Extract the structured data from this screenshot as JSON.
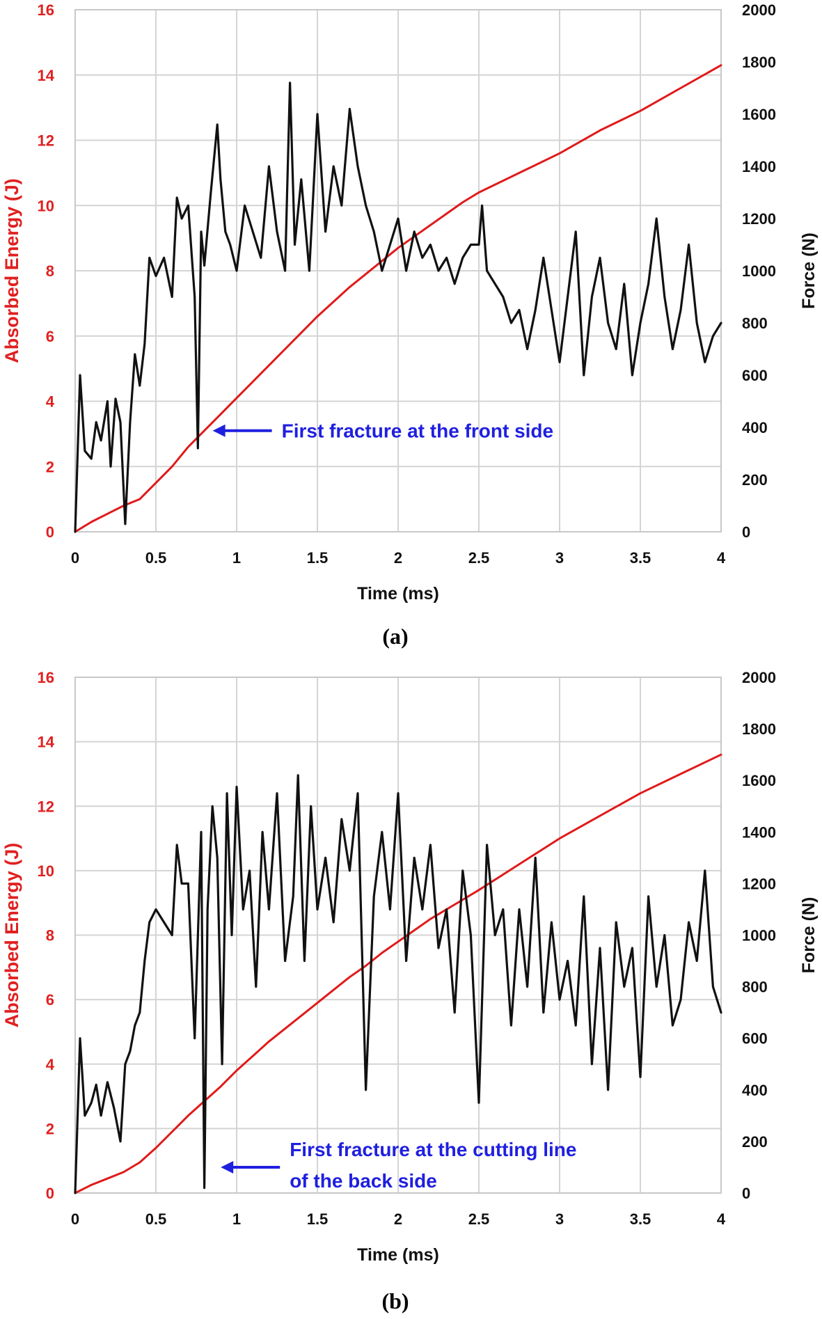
{
  "chart_data": [
    {
      "type": "line",
      "panel": "a",
      "caption": "(a)",
      "xlabel": "Time (ms)",
      "ylabel_left": "Absorbed Energy (J)",
      "ylabel_right": "Force (N)",
      "xlim": [
        0,
        4
      ],
      "ylim_left": [
        0,
        16
      ],
      "ylim_right": [
        0,
        2000
      ],
      "x_ticks": [
        "0",
        "0.5",
        "1",
        "1.5",
        "2",
        "2.5",
        "3",
        "3.5",
        "4"
      ],
      "y_left_ticks": [
        "0",
        "2",
        "4",
        "6",
        "8",
        "10",
        "12",
        "14",
        "16"
      ],
      "y_right_ticks": [
        "0",
        "200",
        "400",
        "600",
        "800",
        "1000",
        "1200",
        "1400",
        "1600",
        "1800",
        "2000"
      ],
      "grid": true,
      "annotation": {
        "lines": [
          "First fracture at the front side"
        ],
        "target_x": 0.8,
        "target_energy": 3.1
      },
      "series": [
        {
          "axis": "left",
          "color": "#e01a1a",
          "x": [
            0,
            0.1,
            0.2,
            0.3,
            0.4,
            0.5,
            0.6,
            0.7,
            0.8,
            0.9,
            1.0,
            1.1,
            1.2,
            1.3,
            1.4,
            1.5,
            1.6,
            1.7,
            1.8,
            1.9,
            2.0,
            2.1,
            2.2,
            2.3,
            2.4,
            2.5,
            2.75,
            3.0,
            3.25,
            3.5,
            3.75,
            4.0
          ],
          "values": [
            0,
            0.3,
            0.55,
            0.8,
            1.0,
            1.5,
            2.0,
            2.6,
            3.1,
            3.6,
            4.1,
            4.6,
            5.1,
            5.6,
            6.1,
            6.6,
            7.05,
            7.5,
            7.9,
            8.3,
            8.7,
            9.05,
            9.4,
            9.75,
            10.1,
            10.4,
            11.0,
            11.6,
            12.3,
            12.9,
            13.6,
            14.3
          ]
        },
        {
          "axis": "right",
          "color": "#111111",
          "x": [
            0,
            0.03,
            0.06,
            0.1,
            0.13,
            0.16,
            0.2,
            0.22,
            0.25,
            0.28,
            0.31,
            0.34,
            0.37,
            0.4,
            0.43,
            0.46,
            0.5,
            0.55,
            0.6,
            0.63,
            0.66,
            0.7,
            0.74,
            0.76,
            0.78,
            0.8,
            0.84,
            0.88,
            0.9,
            0.93,
            0.96,
            1.0,
            1.05,
            1.1,
            1.15,
            1.2,
            1.25,
            1.3,
            1.33,
            1.36,
            1.4,
            1.45,
            1.5,
            1.55,
            1.6,
            1.65,
            1.7,
            1.75,
            1.8,
            1.85,
            1.9,
            1.95,
            2.0,
            2.05,
            2.1,
            2.15,
            2.2,
            2.25,
            2.3,
            2.35,
            2.4,
            2.45,
            2.5,
            2.52,
            2.55,
            2.6,
            2.65,
            2.7,
            2.75,
            2.8,
            2.85,
            2.9,
            2.95,
            3.0,
            3.05,
            3.1,
            3.15,
            3.2,
            3.25,
            3.3,
            3.35,
            3.4,
            3.45,
            3.5,
            3.55,
            3.6,
            3.65,
            3.7,
            3.75,
            3.8,
            3.85,
            3.9,
            3.95,
            4.0
          ],
          "values": [
            0,
            600,
            310,
            280,
            420,
            350,
            500,
            250,
            510,
            420,
            30,
            420,
            680,
            560,
            720,
            1050,
            980,
            1050,
            900,
            1280,
            1200,
            1250,
            900,
            320,
            1150,
            1020,
            1300,
            1560,
            1350,
            1150,
            1100,
            1000,
            1250,
            1150,
            1050,
            1400,
            1150,
            1000,
            1720,
            1100,
            1350,
            1000,
            1600,
            1150,
            1400,
            1250,
            1620,
            1400,
            1250,
            1150,
            1000,
            1100,
            1200,
            1000,
            1150,
            1050,
            1100,
            1000,
            1050,
            950,
            1050,
            1100,
            1100,
            1250,
            1000,
            950,
            900,
            800,
            850,
            700,
            850,
            1050,
            850,
            650,
            900,
            1150,
            600,
            900,
            1050,
            800,
            700,
            950,
            600,
            800,
            950,
            1200,
            900,
            700,
            850,
            1100,
            800,
            650,
            750,
            800
          ]
        }
      ]
    },
    {
      "type": "line",
      "panel": "b",
      "caption": "(b)",
      "xlabel": "Time (ms)",
      "ylabel_left": "Absorbed Energy (J)",
      "ylabel_right": "Force (N)",
      "xlim": [
        0,
        4
      ],
      "ylim_left": [
        0,
        16
      ],
      "ylim_right": [
        0,
        2000
      ],
      "x_ticks": [
        "0",
        "0.5",
        "1",
        "1.5",
        "2",
        "2.5",
        "3",
        "3.5",
        "4"
      ],
      "y_left_ticks": [
        "0",
        "2",
        "4",
        "6",
        "8",
        "10",
        "12",
        "14",
        "16"
      ],
      "y_right_ticks": [
        "0",
        "200",
        "400",
        "600",
        "800",
        "1000",
        "1200",
        "1400",
        "1600",
        "1800",
        "2000"
      ],
      "grid": true,
      "annotation": {
        "lines": [
          "First fracture at the cutting line",
          "of the back side"
        ],
        "target_x": 0.85,
        "target_energy": 0.8
      },
      "series": [
        {
          "axis": "left",
          "color": "#e01a1a",
          "x": [
            0,
            0.1,
            0.2,
            0.3,
            0.4,
            0.5,
            0.6,
            0.7,
            0.8,
            0.9,
            1.0,
            1.1,
            1.2,
            1.3,
            1.4,
            1.5,
            1.6,
            1.7,
            1.8,
            1.9,
            2.0,
            2.1,
            2.2,
            2.3,
            2.4,
            2.5,
            2.75,
            3.0,
            3.25,
            3.5,
            3.75,
            4.0
          ],
          "values": [
            0,
            0.25,
            0.45,
            0.65,
            0.95,
            1.4,
            1.9,
            2.4,
            2.85,
            3.3,
            3.8,
            4.25,
            4.7,
            5.1,
            5.5,
            5.9,
            6.3,
            6.7,
            7.05,
            7.45,
            7.8,
            8.15,
            8.5,
            8.8,
            9.1,
            9.4,
            10.2,
            11.0,
            11.7,
            12.4,
            13.0,
            13.6
          ]
        },
        {
          "axis": "right",
          "color": "#111111",
          "x": [
            0,
            0.03,
            0.06,
            0.1,
            0.13,
            0.16,
            0.2,
            0.24,
            0.28,
            0.31,
            0.34,
            0.37,
            0.4,
            0.43,
            0.46,
            0.5,
            0.55,
            0.6,
            0.63,
            0.66,
            0.7,
            0.74,
            0.78,
            0.8,
            0.82,
            0.85,
            0.88,
            0.91,
            0.94,
            0.97,
            1.0,
            1.04,
            1.08,
            1.12,
            1.16,
            1.2,
            1.25,
            1.3,
            1.35,
            1.38,
            1.42,
            1.46,
            1.5,
            1.55,
            1.6,
            1.65,
            1.7,
            1.75,
            1.8,
            1.85,
            1.9,
            1.95,
            2.0,
            2.05,
            2.1,
            2.15,
            2.2,
            2.25,
            2.3,
            2.35,
            2.4,
            2.45,
            2.5,
            2.55,
            2.6,
            2.65,
            2.7,
            2.75,
            2.8,
            2.85,
            2.9,
            2.95,
            3.0,
            3.05,
            3.1,
            3.15,
            3.2,
            3.25,
            3.3,
            3.35,
            3.4,
            3.45,
            3.5,
            3.55,
            3.6,
            3.65,
            3.7,
            3.75,
            3.8,
            3.85,
            3.9,
            3.95,
            4.0
          ],
          "values": [
            0,
            600,
            300,
            350,
            420,
            300,
            430,
            330,
            200,
            500,
            550,
            650,
            700,
            900,
            1050,
            1100,
            1050,
            1000,
            1350,
            1200,
            1200,
            600,
            1400,
            20,
            1100,
            1500,
            1300,
            500,
            1550,
            1000,
            1575,
            1100,
            1250,
            800,
            1400,
            1100,
            1550,
            900,
            1150,
            1620,
            900,
            1500,
            1100,
            1300,
            1050,
            1450,
            1250,
            1550,
            400,
            1150,
            1400,
            1100,
            1550,
            900,
            1300,
            1100,
            1350,
            950,
            1100,
            700,
            1250,
            1000,
            350,
            1350,
            1000,
            1100,
            650,
            1100,
            800,
            1300,
            700,
            1050,
            750,
            900,
            650,
            1150,
            500,
            950,
            400,
            1050,
            800,
            950,
            450,
            1150,
            800,
            1000,
            650,
            750,
            1050,
            900,
            1250,
            800,
            700
          ]
        }
      ]
    }
  ]
}
